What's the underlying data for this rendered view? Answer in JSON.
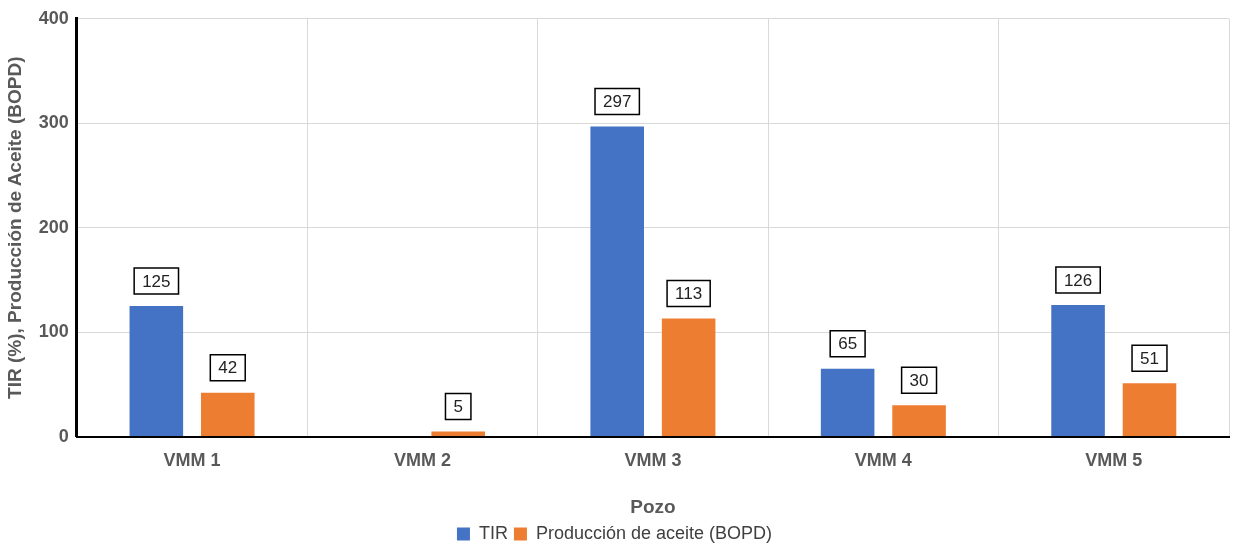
{
  "chart_data": {
    "type": "bar",
    "xlabel": "Pozo",
    "ylabel": "TIR (%), Producción de Aceite (BOPD)",
    "categories": [
      "VMM 1",
      "VMM 2",
      "VMM 3",
      "VMM 4",
      "VMM 5"
    ],
    "series": [
      {
        "name": "TIR",
        "color": "#4472c4",
        "values": [
          125,
          null,
          297,
          65,
          126
        ]
      },
      {
        "name": "Producción de aceite (BOPD)",
        "color": "#ed7d31",
        "values": [
          42,
          5,
          113,
          30,
          51
        ]
      }
    ],
    "ylim": [
      0,
      400
    ],
    "yticks": [
      0,
      100,
      200,
      300,
      400
    ],
    "grid": true,
    "legend": "bottom",
    "data_labels": true
  }
}
